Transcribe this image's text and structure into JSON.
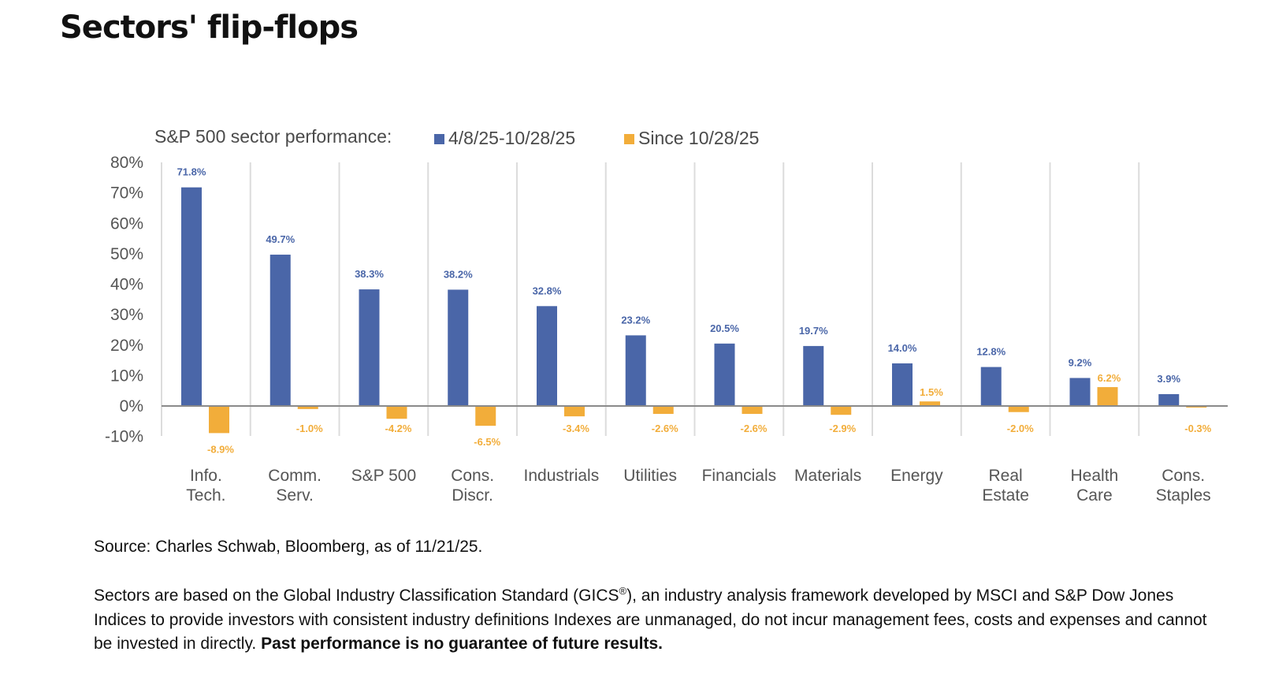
{
  "page": {
    "title": "Sectors' flip-flops",
    "source": "Source: Charles Schwab, Bloomberg, as of 11/21/25.",
    "notes": {
      "part1": "Sectors are based on the Global Industry Classification Standard (GICS",
      "reg": "®",
      "part2": "), an industry analysis framework developed by MSCI and S&P Dow Jones Indices to provide investors with consistent industry definitions Indexes are unmanaged, do not incur management fees, costs and expenses and cannot be invested in directly. ",
      "bold": "Past performance is no guarantee of future results."
    }
  },
  "chart_data": {
    "type": "bar",
    "title": "S&P 500 sector performance:",
    "xlabel": "",
    "ylabel": "",
    "ylim": [
      -10,
      80
    ],
    "yticks": [
      80,
      70,
      60,
      50,
      40,
      30,
      20,
      10,
      0,
      -10
    ],
    "ytick_labels": [
      "80%",
      "70%",
      "60%",
      "50%",
      "40%",
      "30%",
      "20%",
      "10%",
      "0%",
      "-10%"
    ],
    "grid": "vertical category separators",
    "legend_position": "top",
    "categories": [
      [
        "Info.",
        "Tech."
      ],
      [
        "Comm.",
        "Serv."
      ],
      [
        "S&P 500"
      ],
      [
        "Cons.",
        "Discr."
      ],
      [
        "Industrials"
      ],
      [
        "Utilities"
      ],
      [
        "Financials"
      ],
      [
        "Materials"
      ],
      [
        "Energy"
      ],
      [
        "Real",
        "Estate"
      ],
      [
        "Health",
        "Care"
      ],
      [
        "Cons.",
        "Staples"
      ]
    ],
    "series": [
      {
        "name": "4/8/25-10/28/25",
        "color": "#4a66a8",
        "values": [
          71.8,
          49.7,
          38.3,
          38.2,
          32.8,
          23.2,
          20.5,
          19.7,
          14.0,
          12.8,
          9.2,
          3.9
        ],
        "labels": [
          "71.8%",
          "49.7%",
          "38.3%",
          "38.2%",
          "32.8%",
          "23.2%",
          "20.5%",
          "19.7%",
          "14.0%",
          "12.8%",
          "9.2%",
          "3.9%"
        ]
      },
      {
        "name": "Since 10/28/25",
        "color": "#f2ad3a",
        "values": [
          -8.9,
          -1.0,
          -4.2,
          -6.5,
          -3.4,
          -2.6,
          -2.6,
          -2.9,
          1.5,
          -2.0,
          6.2,
          -0.3
        ],
        "labels": [
          "-8.9%",
          "-1.0%",
          "-4.2%",
          "-6.5%",
          "-3.4%",
          "-2.6%",
          "-2.6%",
          "-2.9%",
          "1.5%",
          "-2.0%",
          "6.2%",
          "-0.3%"
        ]
      }
    ]
  }
}
